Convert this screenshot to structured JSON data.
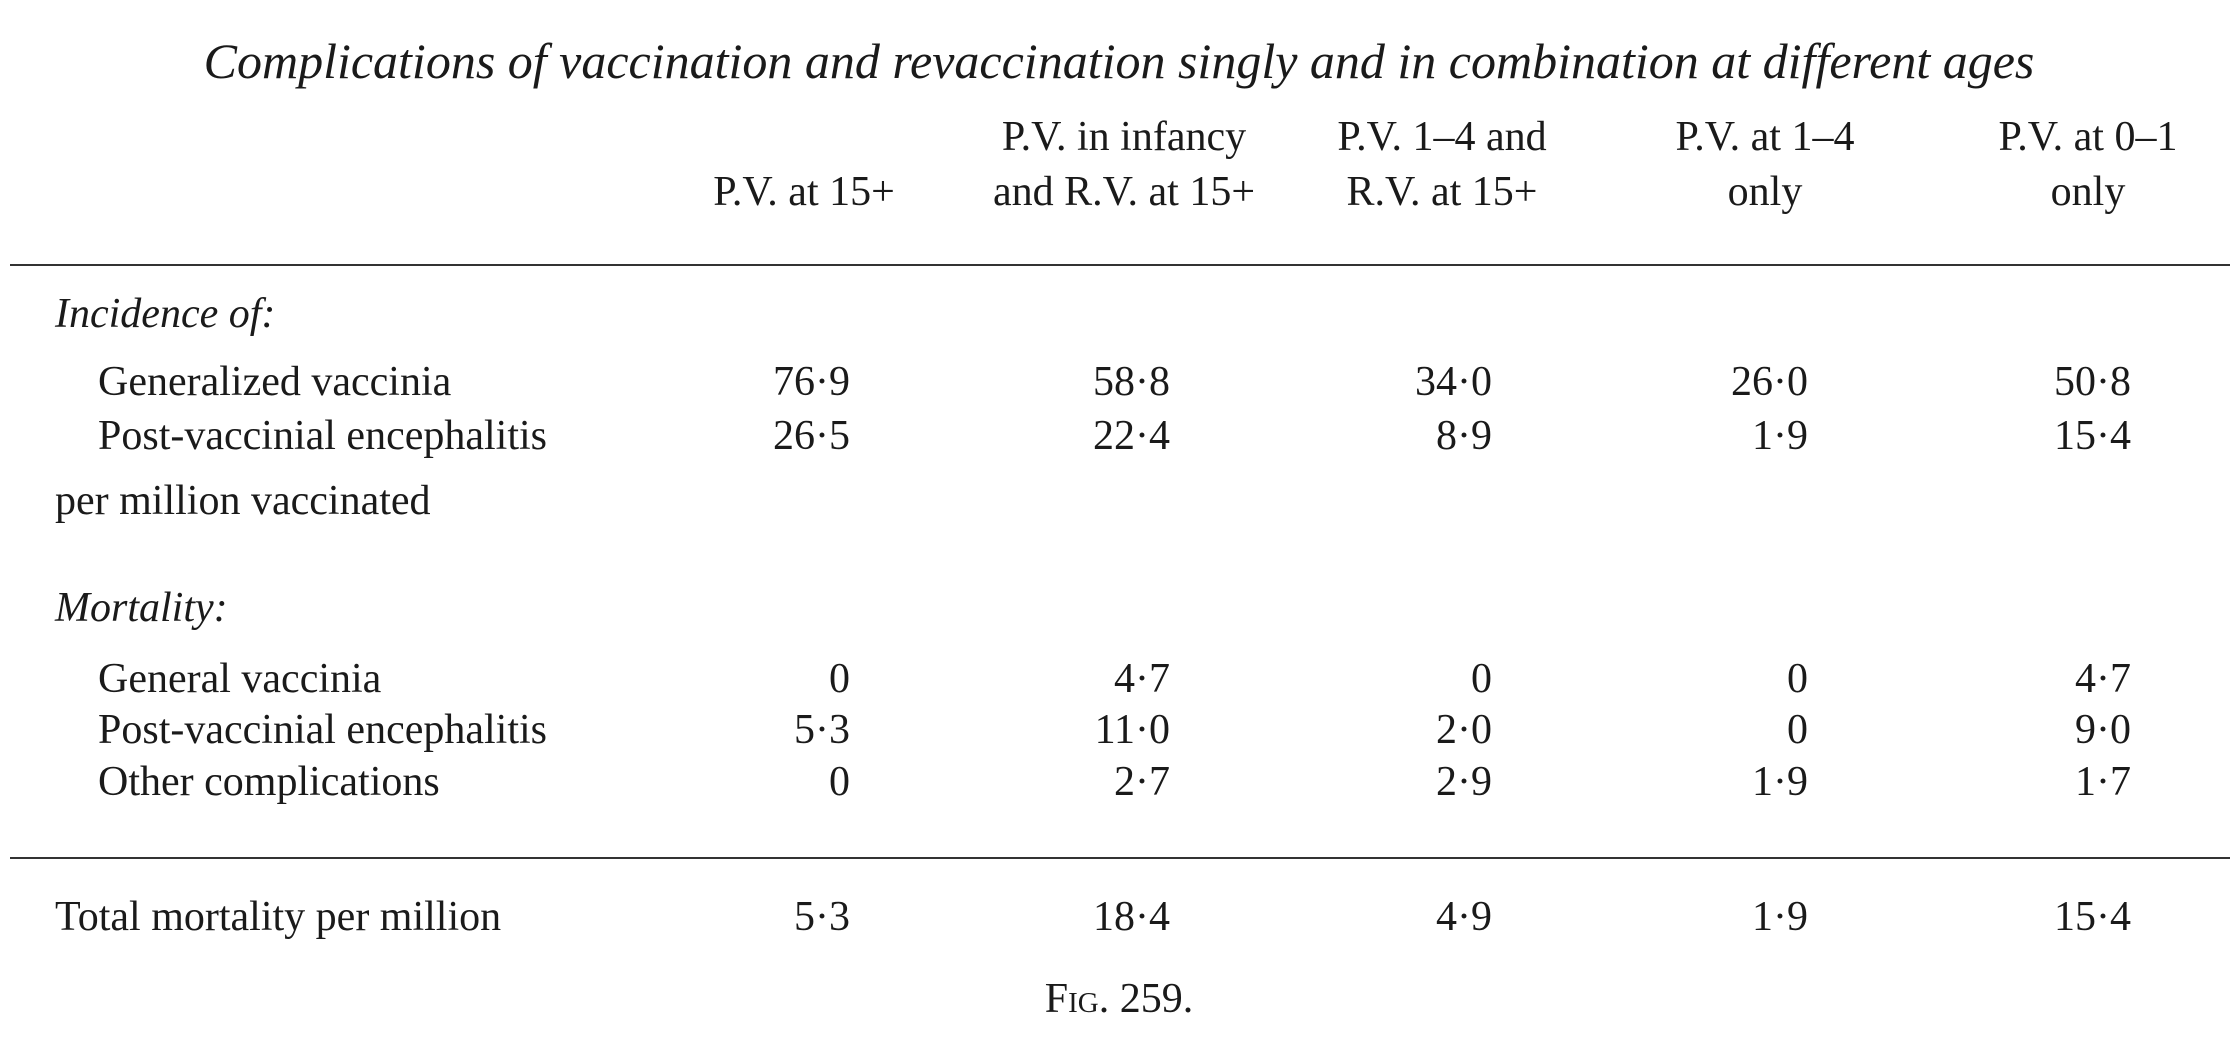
{
  "title": "Complications of vaccination and revaccination singly and in combination at different ages",
  "table": {
    "columns": [
      [
        "P.V. at 15+"
      ],
      [
        "P.V. in infancy",
        "and R.V. at 15+"
      ],
      [
        "P.V. 1–4 and",
        "R.V. at 15+"
      ],
      [
        "P.V. at 1–4",
        "only"
      ],
      [
        "P.V. at 0–1",
        "only"
      ]
    ],
    "sections": [
      {
        "heading": "Incidence of:",
        "rows": [
          {
            "label": "Generalized vaccinia",
            "values": [
              "76·9",
              "58·8",
              "34·0",
              "26·0",
              "50·8"
            ]
          },
          {
            "label": "Post-vaccinial encephalitis",
            "values": [
              "26·5",
              "22·4",
              "8·9",
              "1·9",
              "15·4"
            ]
          }
        ],
        "note": "per million vaccinated"
      },
      {
        "heading": "Mortality:",
        "rows": [
          {
            "label": "General vaccinia",
            "values": [
              "0",
              "4·7",
              "0",
              "0",
              "4·7"
            ]
          },
          {
            "label": "Post-vaccinial encephalitis",
            "values": [
              "5·3",
              "11·0",
              "2·0",
              "0",
              "9·0"
            ]
          },
          {
            "label": "Other complications",
            "values": [
              "0",
              "2·7",
              "2·9",
              "1·9",
              "1·7"
            ]
          }
        ]
      }
    ],
    "total": {
      "label": "Total mortality per million",
      "values": [
        "5·3",
        "18·4",
        "4·9",
        "1·9",
        "15·4"
      ]
    }
  },
  "caption": "Fig. 259."
}
